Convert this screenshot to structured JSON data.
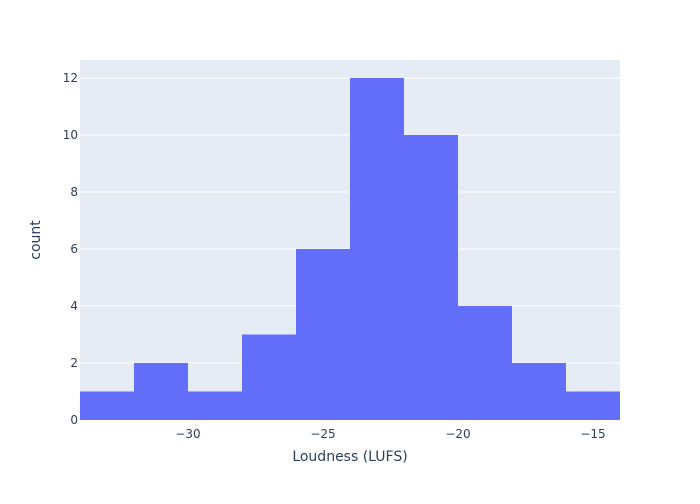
{
  "chart_data": {
    "type": "bar",
    "subtype": "histogram",
    "title": "",
    "xlabel": "Loudness (LUFS)",
    "ylabel": "count",
    "xlim": [
      -34,
      -14
    ],
    "ylim": [
      0,
      12.63
    ],
    "x_ticks": [
      -30,
      -25,
      -20,
      -15
    ],
    "x_tick_labels": [
      "−30",
      "−25",
      "−20",
      "−15"
    ],
    "y_ticks": [
      0,
      2,
      4,
      6,
      8,
      10,
      12
    ],
    "y_tick_labels": [
      "0",
      "2",
      "4",
      "6",
      "8",
      "10",
      "12"
    ],
    "bins": [
      {
        "start": -34,
        "end": -32,
        "count": 1
      },
      {
        "start": -32,
        "end": -30,
        "count": 2
      },
      {
        "start": -30,
        "end": -28,
        "count": 1
      },
      {
        "start": -28,
        "end": -26,
        "count": 3
      },
      {
        "start": -26,
        "end": -24,
        "count": 6
      },
      {
        "start": -24,
        "end": -22,
        "count": 12
      },
      {
        "start": -22,
        "end": -20,
        "count": 10
      },
      {
        "start": -20,
        "end": -18,
        "count": 4
      },
      {
        "start": -18,
        "end": -16,
        "count": 2
      },
      {
        "start": -16,
        "end": -14,
        "count": 1
      }
    ],
    "grid": true,
    "colors": {
      "bar": "#636efa",
      "plot_background": "#e5ecf6",
      "grid": "#ffffff"
    }
  }
}
